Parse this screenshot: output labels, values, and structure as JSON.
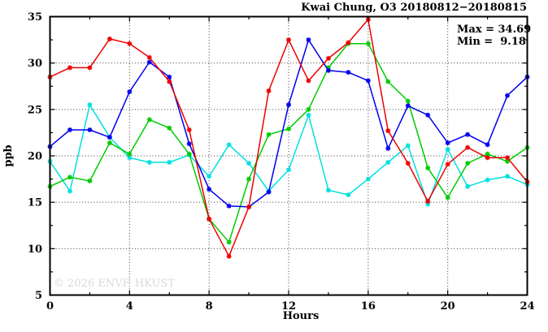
{
  "title": "Kwai Chung, O3 20180812−20180815",
  "annotations": {
    "max_label": "Max = 34.69",
    "min_label": "Min =  9.18"
  },
  "watermark": "© 2026 ENVF, HKUST",
  "chart_data": {
    "type": "line",
    "title": "Kwai Chung, O3 20180812−20180815",
    "xlabel": "Hours",
    "ylabel": "ppb",
    "xlim": [
      0,
      24
    ],
    "ylim": [
      5,
      35
    ],
    "x_major_ticks": [
      0,
      4,
      8,
      12,
      16,
      20,
      24
    ],
    "x_minor_ticks": [
      2,
      6,
      10,
      14,
      18,
      22
    ],
    "y_major_ticks": [
      5,
      10,
      15,
      20,
      25,
      30,
      35
    ],
    "y_minor_ticks": [
      7.5,
      12.5,
      17.5,
      22.5,
      27.5,
      32.5
    ],
    "grid": "dotted lines at major ticks",
    "legend": "none",
    "max_value": 34.69,
    "min_value": 9.18,
    "marker": "asterisk",
    "x": [
      0,
      1,
      2,
      3,
      4,
      5,
      6,
      7,
      8,
      9,
      10,
      11,
      12,
      13,
      14,
      15,
      16,
      17,
      18,
      19,
      20,
      21,
      22,
      23,
      24
    ],
    "series": [
      {
        "name": "series-cyan",
        "color": "#00e0e0",
        "values": [
          19.4,
          16.2,
          25.5,
          22.0,
          19.8,
          19.3,
          19.3,
          20.1,
          17.8,
          21.2,
          19.2,
          16.2,
          18.5,
          24.4,
          16.3,
          15.8,
          17.5,
          19.3,
          21.1,
          14.8,
          20.7,
          16.7,
          17.4,
          17.8,
          16.9
        ]
      },
      {
        "name": "series-green",
        "color": "#00cc00",
        "values": [
          16.7,
          17.7,
          17.3,
          21.4,
          20.2,
          23.9,
          23.0,
          20.2,
          13.2,
          10.7,
          17.5,
          22.3,
          22.9,
          25.0,
          29.5,
          32.1,
          32.1,
          28.0,
          25.9,
          18.7,
          15.5,
          19.2,
          20.2,
          19.4,
          20.9
        ]
      },
      {
        "name": "series-blue",
        "color": "#0000ee",
        "values": [
          21.0,
          22.8,
          22.8,
          22.0,
          26.9,
          30.1,
          28.5,
          21.3,
          16.4,
          14.6,
          14.5,
          16.1,
          25.5,
          32.5,
          29.2,
          29.0,
          28.1,
          20.8,
          25.4,
          24.4,
          21.4,
          22.3,
          21.2,
          26.5,
          28.5
        ]
      },
      {
        "name": "series-red",
        "color": "#ee0000",
        "values": [
          28.5,
          29.5,
          29.5,
          32.6,
          32.1,
          30.6,
          28.0,
          22.8,
          13.2,
          9.18,
          14.5,
          27.0,
          32.5,
          28.1,
          30.5,
          32.2,
          34.69,
          22.7,
          19.2,
          15.1,
          19.1,
          20.9,
          19.8,
          19.8,
          17.2
        ]
      }
    ]
  }
}
